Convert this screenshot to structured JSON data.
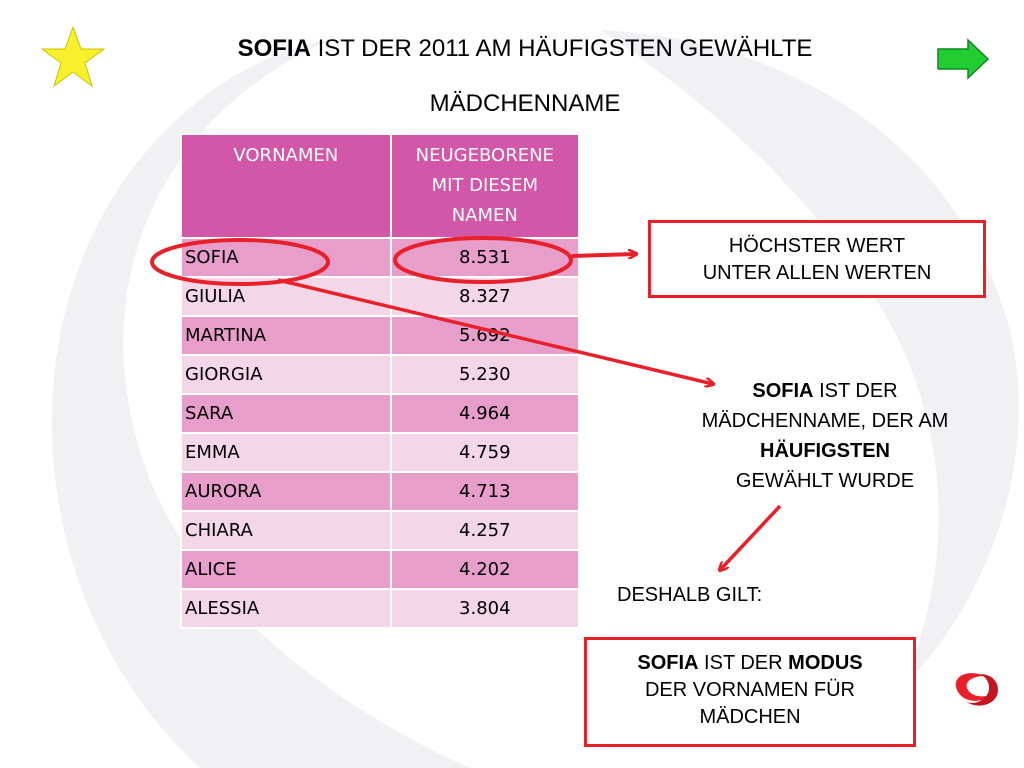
{
  "title": {
    "line1_bold": "SOFIA",
    "line1_rest": " IST DER 2011 AM HÄUFIGSTEN GEWÄHLTE",
    "line2": "MÄDCHENNAME"
  },
  "icons": {
    "star": "star-icon",
    "next": "arrow-right-icon",
    "logo": "logo-icon"
  },
  "colors": {
    "header": "#d257a9",
    "row_dark": "#e89ecb",
    "row_light": "#f4d6e9",
    "annotation": "#e8202a",
    "star": "#f7f02a",
    "arrow": "#22cc33"
  },
  "table": {
    "headers": [
      "VORNAMEN",
      "NEUGEBORENE MIT DIESEM NAMEN"
    ],
    "rows": [
      {
        "name": "SOFIA",
        "count": "8.531"
      },
      {
        "name": "GIULIA",
        "count": "8.327"
      },
      {
        "name": "MARTINA",
        "count": "5.692"
      },
      {
        "name": "GIORGIA",
        "count": "5.230"
      },
      {
        "name": "SARA",
        "count": "4.964"
      },
      {
        "name": "EMMA",
        "count": "4.759"
      },
      {
        "name": "AURORA",
        "count": "4.713"
      },
      {
        "name": "CHIARA",
        "count": "4.257"
      },
      {
        "name": "ALICE",
        "count": "4.202"
      },
      {
        "name": "ALESSIA",
        "count": "3.804"
      }
    ]
  },
  "callouts": {
    "highest_line1": "HÖCHSTER WERT",
    "highest_line2": "UNTER ALLEN WERTEN",
    "sofia_bold": "SOFIA",
    "sofia_rest": " IST DER",
    "sofia_line2": "MÄDCHENNAME, DER AM",
    "sofia_line3_bold": "HÄUFIGSTEN",
    "sofia_line4": "GEWÄHLT WURDE",
    "deshalb": "DESHALB GILT:",
    "modus_bold1": "SOFIA",
    "modus_mid": " IST DER ",
    "modus_bold2": "MODUS",
    "modus_line2": "DER VORNAMEN FÜR",
    "modus_line3": "MÄDCHEN"
  }
}
